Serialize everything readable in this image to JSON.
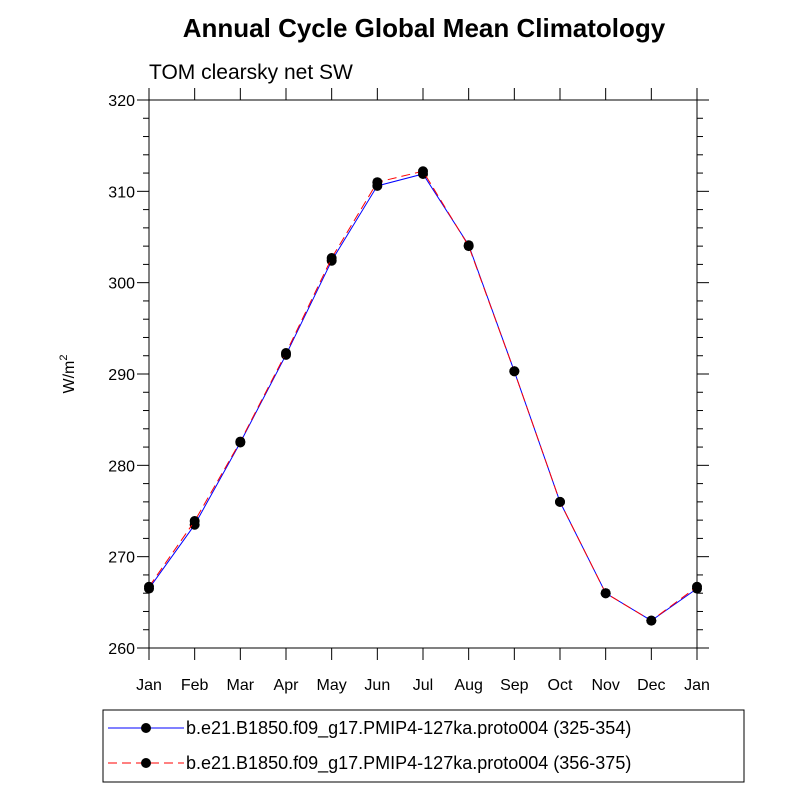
{
  "chart_data": {
    "type": "line",
    "title": "Annual Cycle Global Mean Climatology",
    "subtitle": "TOM clearsky net SW",
    "ylabel": "W/m",
    "ylabel_superscript": "2",
    "ylim": [
      260,
      320
    ],
    "yticks": [
      260,
      270,
      280,
      290,
      300,
      310,
      320
    ],
    "categories": [
      "Jan",
      "Feb",
      "Mar",
      "Apr",
      "May",
      "Jun",
      "Jul",
      "Aug",
      "Sep",
      "Oct",
      "Nov",
      "Dec",
      "Jan"
    ],
    "series": [
      {
        "name": "b.e21.B1850.f09_g17.PMIP4-127ka.proto004 (325-354)",
        "color": "#0000ff",
        "dash": "solid",
        "values": [
          266.5,
          273.5,
          282.5,
          292.1,
          302.4,
          310.6,
          311.9,
          304.1,
          290.3,
          276.0,
          266.0,
          263.0,
          266.5
        ]
      },
      {
        "name": "b.e21.B1850.f09_g17.PMIP4-127ka.proto004 (356-375)",
        "color": "#ff0000",
        "dash": "dashed",
        "values": [
          266.7,
          273.9,
          282.6,
          292.3,
          302.7,
          311.0,
          312.2,
          304.0,
          290.3,
          276.0,
          266.0,
          263.0,
          266.7
        ]
      }
    ],
    "legend_position": "bottom"
  }
}
